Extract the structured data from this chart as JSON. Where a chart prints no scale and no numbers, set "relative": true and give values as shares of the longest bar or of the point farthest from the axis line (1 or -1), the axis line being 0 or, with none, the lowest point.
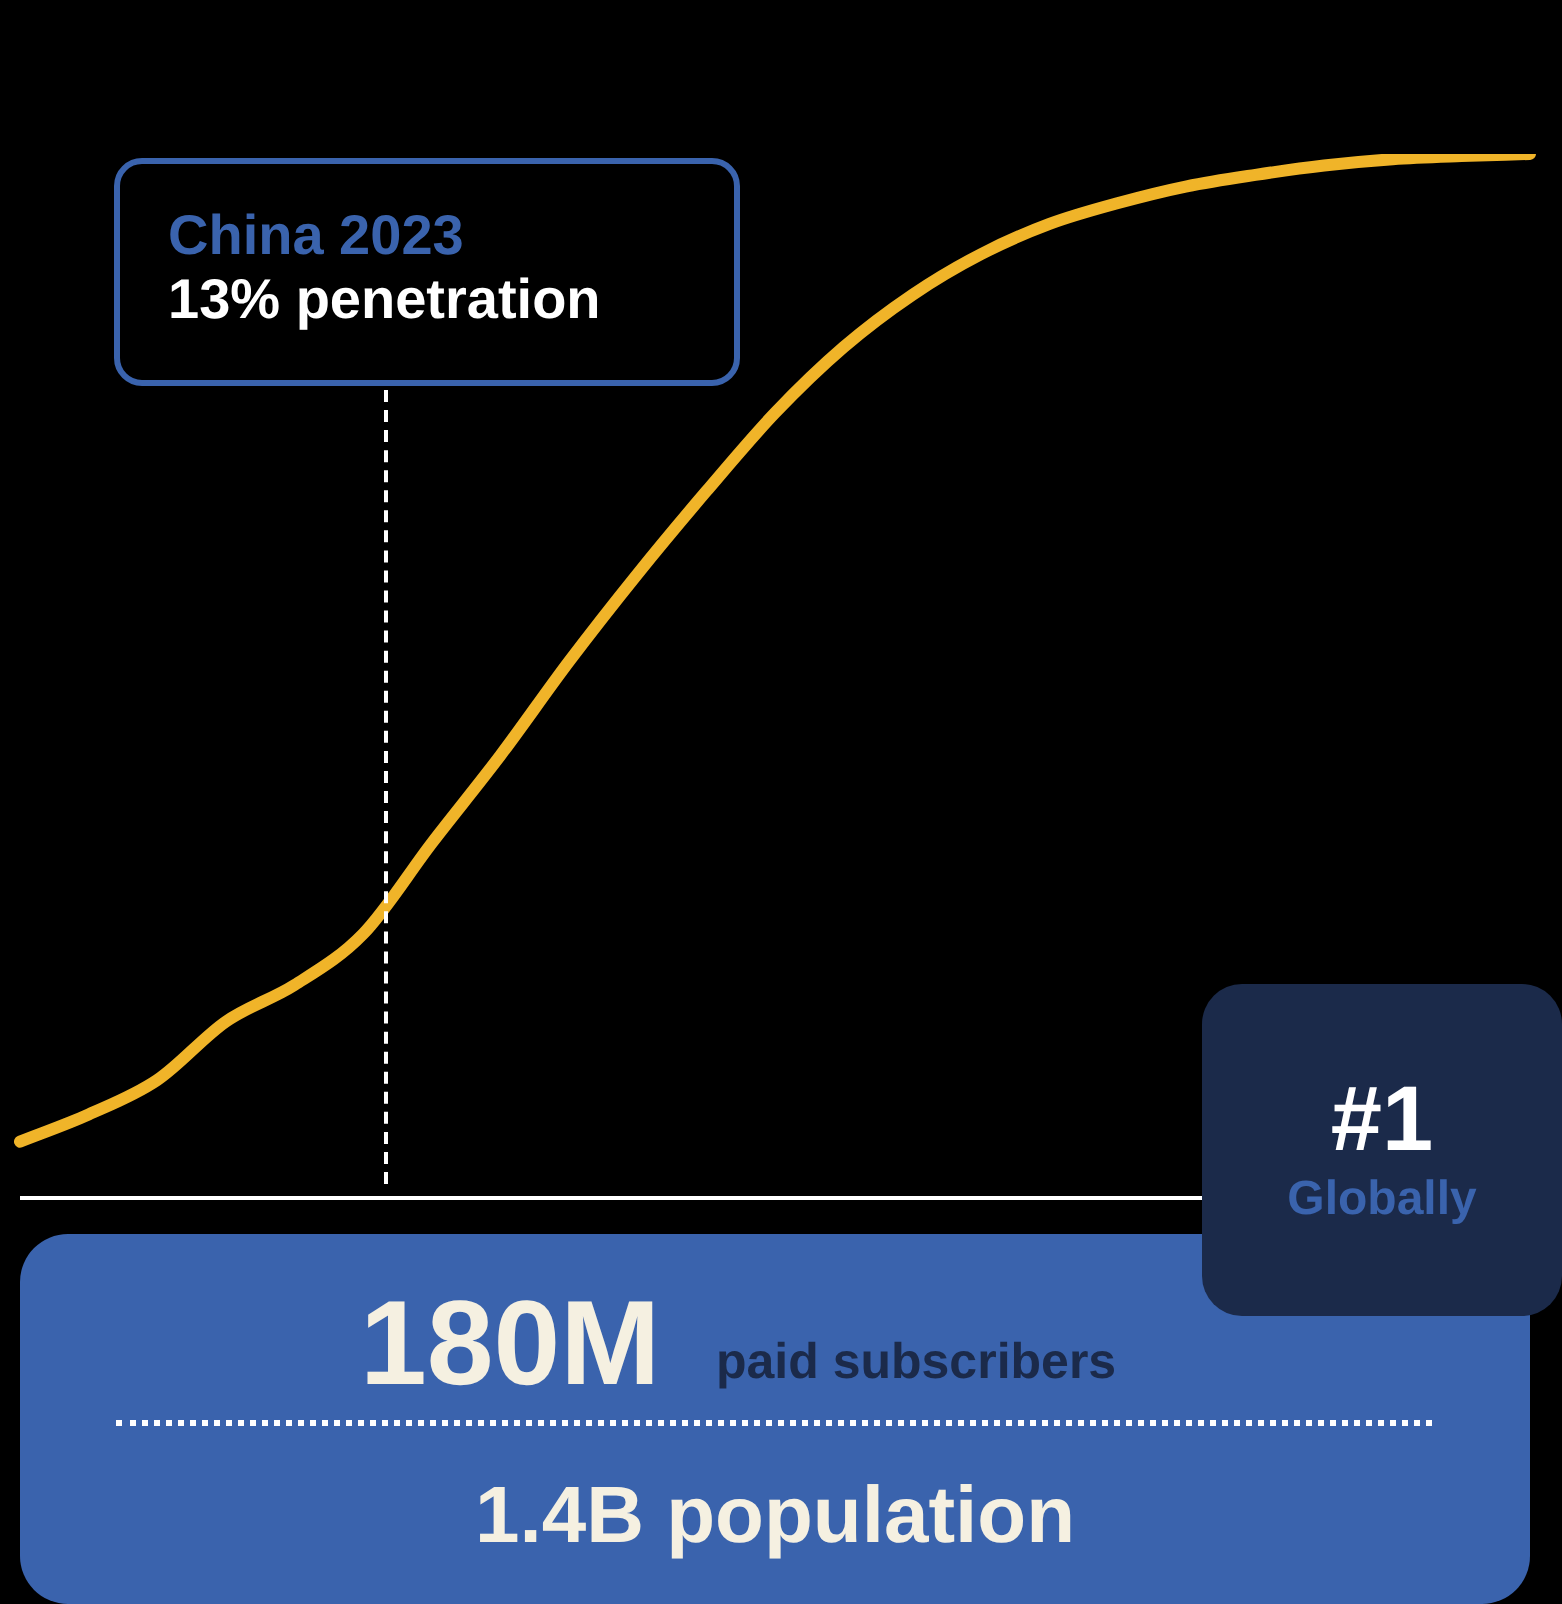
{
  "chart_data": {
    "type": "line",
    "relative": true,
    "categories": [
      null,
      null,
      null,
      null,
      null,
      null,
      null,
      null,
      null,
      null,
      null,
      null,
      null,
      null,
      null,
      null,
      null,
      null,
      null,
      null,
      null,
      null,
      null
    ],
    "series": [
      {
        "color": "#f0b429",
        "values": [
          0.054,
          0.08,
          0.113,
          0.169,
          0.204,
          0.253,
          0.34,
          0.424,
          0.514,
          0.598,
          0.677,
          0.752,
          0.815,
          0.865,
          0.904,
          0.933,
          0.953,
          0.969,
          0.98,
          0.989,
          0.995,
          0.998,
          1.0
        ]
      }
    ],
    "annotations": [
      "China 2023",
      "13% penetration",
      "#1",
      "Globally",
      "180M",
      "paid subscribers",
      "1.4B population"
    ],
    "legend": false,
    "marker": "none",
    "line_style": "solid"
  }
}
